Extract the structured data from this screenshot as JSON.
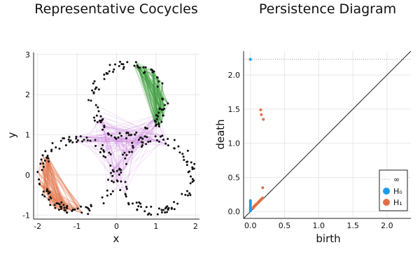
{
  "chart_data": [
    {
      "type": "scatter",
      "title": "Representative Cocycles",
      "xlabel": "x",
      "ylabel": "y",
      "xlim": [
        -2.1,
        2.1
      ],
      "ylim": [
        -1.1,
        3.05
      ],
      "xticks": [
        "-2",
        "-1",
        "0",
        "1",
        "2"
      ],
      "yticks": [
        "-1",
        "0",
        "1",
        "2",
        "3"
      ],
      "grid": true,
      "legend": "none",
      "circles": [
        {
          "cx": -1.0,
          "cy": 0.0,
          "r": 0.9
        },
        {
          "cx": 1.0,
          "cy": 0.0,
          "r": 0.9
        },
        {
          "cx": 0.3,
          "cy": 1.85,
          "r": 0.9
        }
      ],
      "cocycle_colors": {
        "H1_first": "#3f9f3f",
        "H1_second": "#e26f46",
        "H0_edges": "#c270d6"
      },
      "point_color": "#111111"
    },
    {
      "type": "scatter",
      "title": "Persistence Diagram",
      "xlabel": "birth",
      "ylabel": "death",
      "xlim": [
        -0.1,
        2.35
      ],
      "ylim": [
        -0.1,
        2.35
      ],
      "xticks": [
        "0.0",
        "0.5",
        "1.0",
        "1.5",
        "2.0"
      ],
      "yticks": [
        "0.0",
        "0.5",
        "1.0",
        "1.5",
        "2.0"
      ],
      "grid": true,
      "legend": "bottom-right",
      "infinity_level": 2.23,
      "series": [
        {
          "name": "H₀",
          "color": "#1f9be9",
          "points": [
            [
              0,
              2.23
            ],
            [
              0,
              0.16
            ],
            [
              0,
              0.14
            ],
            [
              0,
              0.12
            ],
            [
              0,
              0.1
            ],
            [
              0,
              0.08
            ],
            [
              0,
              0.06
            ],
            [
              0,
              0.05
            ],
            [
              0,
              0.04
            ],
            [
              0,
              0.03
            ],
            [
              0,
              0.02
            ],
            [
              0,
              0.01
            ]
          ]
        },
        {
          "name": "H₁",
          "color": "#e26f46",
          "points": [
            [
              0.15,
              1.49
            ],
            [
              0.16,
              1.42
            ],
            [
              0.19,
              1.35
            ],
            [
              0.18,
              0.35
            ],
            [
              0.05,
              0.07
            ],
            [
              0.07,
              0.09
            ],
            [
              0.09,
              0.11
            ],
            [
              0.11,
              0.13
            ],
            [
              0.13,
              0.15
            ],
            [
              0.15,
              0.17
            ],
            [
              0.17,
              0.19
            ],
            [
              0.04,
              0.05
            ],
            [
              0.06,
              0.08
            ],
            [
              0.08,
              0.1
            ],
            [
              0.12,
              0.14
            ],
            [
              0.14,
              0.16
            ],
            [
              0.16,
              0.18
            ],
            [
              0.18,
              0.2
            ]
          ]
        }
      ],
      "legend_entries": [
        "∞",
        "H₀",
        "H₁"
      ]
    }
  ]
}
